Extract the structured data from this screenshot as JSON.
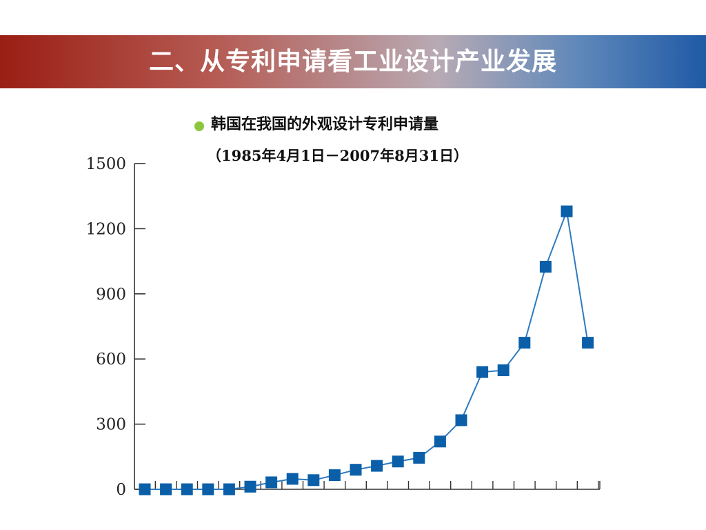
{
  "slide": {
    "title": "二、从专利申请看工业设计产业发展",
    "subtitle": "韩国在我国的外观设计专利申请量",
    "date_range": "（1985年4月1日－2007年8月31日）"
  },
  "colors": {
    "title_band_left": "#9a1e14",
    "title_band_right": "#1f5aa6",
    "bullet": "#8cc63f",
    "series_line": "#2e7ac0",
    "series_marker": "#0a5fa8"
  },
  "chart_data": {
    "type": "line",
    "title": "",
    "xlabel": "",
    "ylabel": "",
    "ylim": [
      0,
      1500
    ],
    "yticks": [
      "0",
      "300",
      "600",
      "900",
      "1200",
      "1500"
    ],
    "x_tick_labels_shown": false,
    "grid": false,
    "legend": "none",
    "series": [
      {
        "values": [
          0,
          0,
          0,
          0,
          0,
          12,
          32,
          48,
          42,
          65,
          90,
          108,
          128,
          145,
          220,
          318,
          540,
          548,
          675,
          1025,
          1280,
          675
        ]
      }
    ]
  }
}
